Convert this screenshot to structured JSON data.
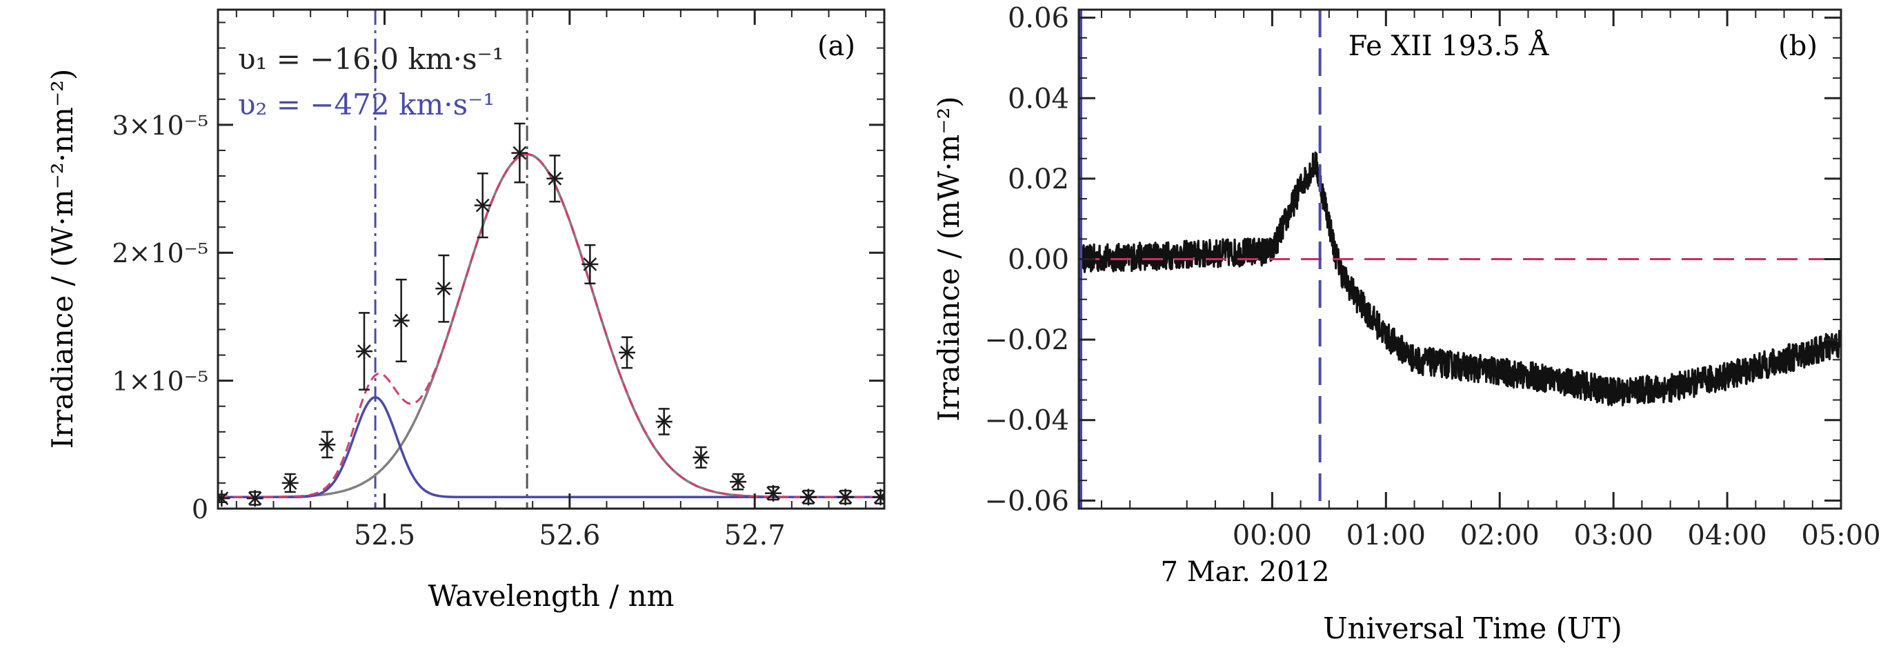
{
  "colors": {
    "axis": "#222222",
    "data": "#1a1a1a",
    "blue": "#4a4aa8",
    "gray": "#808080",
    "red_dash": "#d0406a",
    "orange_dash": "#e8903c",
    "zero_dash": "#c83060"
  },
  "chart_data": [
    {
      "panel": "(a)",
      "type": "line",
      "xlabel": "Wavelength / nm",
      "ylabel": "Irradiance / (W·m⁻²·nm⁻²)",
      "xlim": [
        52.41,
        52.77
      ],
      "ylim": [
        0,
        3.9e-05
      ],
      "xticks": [
        52.5,
        52.6,
        52.7
      ],
      "xtick_labels": [
        "52.5",
        "52.6",
        "52.7"
      ],
      "yticks": [
        0,
        1e-05,
        2e-05,
        3e-05
      ],
      "ytick_labels": [
        "0",
        "1×10⁻⁵",
        "2×10⁻⁵",
        "3×10⁻⁵"
      ],
      "annotations": {
        "v1": "υ₁ = −16.0 km·s⁻¹",
        "v2": "υ₂ = −472 km·s⁻¹"
      },
      "measurements": {
        "x": [
          52.412,
          52.43,
          52.449,
          52.469,
          52.489,
          52.509,
          52.532,
          52.553,
          52.573,
          52.592,
          52.611,
          52.631,
          52.651,
          52.671,
          52.691,
          52.71,
          52.729,
          52.749,
          52.768
        ],
        "y": [
          8e-07,
          8e-07,
          2e-06,
          5e-06,
          1.23e-05,
          1.47e-05,
          1.72e-05,
          2.37e-05,
          2.78e-05,
          2.58e-05,
          1.91e-05,
          1.22e-05,
          6.8e-06,
          4e-06,
          2.1e-06,
          1.2e-06,
          9e-07,
          9e-07,
          9e-07
        ],
        "err": [
          3e-07,
          5e-07,
          7e-07,
          1e-06,
          3e-06,
          3.2e-06,
          2.6e-06,
          2.5e-06,
          2.3e-06,
          1.8e-06,
          1.5e-06,
          1.2e-06,
          1e-06,
          8e-07,
          6e-07,
          5e-07,
          5e-07,
          5e-07,
          5e-07
        ]
      },
      "components": [
        {
          "center": 52.577,
          "amplitude": 2.68e-05,
          "sigma": 0.035,
          "background": 9e-07,
          "style": "solid gray"
        },
        {
          "center": 52.495,
          "amplitude": 7.8e-06,
          "sigma": 0.0115,
          "background": 9e-07,
          "style": "solid blue"
        }
      ],
      "vertical_lines": [
        {
          "x": 52.495,
          "style": "dash-dot blue"
        },
        {
          "x": 52.577,
          "style": "dash-dot gray"
        }
      ]
    },
    {
      "panel": "(b)",
      "type": "line",
      "title": "Fe XII 193.5 Å",
      "xlabel": "Universal Time (UT)",
      "ylabel": "Irradiance / (mW·m⁻²)",
      "xlim": [
        -1.7,
        5.0
      ],
      "ylim": [
        -0.062,
        0.062
      ],
      "xticks": [
        0,
        1,
        2,
        3,
        4,
        5
      ],
      "xtick_labels": [
        "00:00",
        "01:00",
        "02:00",
        "03:00",
        "04:00",
        "05:00"
      ],
      "date_label": "7 Mar. 2012",
      "yticks": [
        -0.06,
        -0.04,
        -0.02,
        0.0,
        0.02,
        0.04,
        0.06
      ],
      "ytick_labels": [
        "−0.06",
        "−0.04",
        "−0.02",
        "0.00",
        "0.02",
        "0.04",
        "0.06"
      ],
      "series_profile": {
        "x_hours": [
          -1.7,
          0.0,
          0.25,
          0.38,
          0.48,
          0.55,
          0.62,
          0.75,
          1.0,
          1.25,
          1.5,
          2.0,
          2.5,
          3.0,
          3.5,
          4.0,
          4.5,
          5.0
        ],
        "y": [
          0.0,
          0.002,
          0.018,
          0.024,
          0.012,
          0.002,
          -0.004,
          -0.01,
          -0.019,
          -0.025,
          -0.026,
          -0.028,
          -0.03,
          -0.033,
          -0.032,
          -0.029,
          -0.025,
          -0.021
        ],
        "noise_amplitude": 0.0035
      },
      "reference_lines": [
        {
          "y": 0.0,
          "style": "dashed red"
        },
        {
          "x": 0.42,
          "style": "dashed blue"
        }
      ]
    }
  ]
}
